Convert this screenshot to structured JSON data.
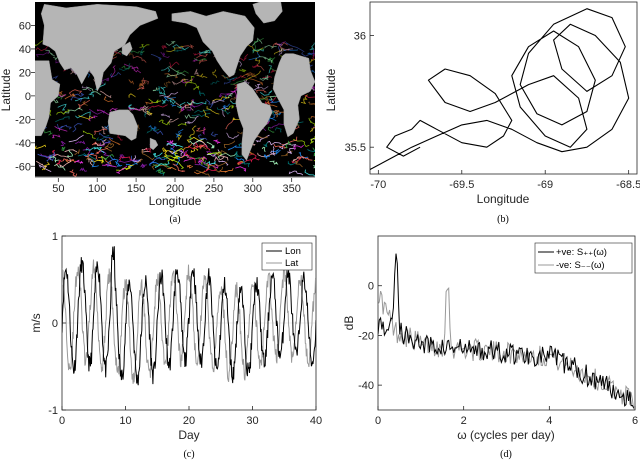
{
  "panels": {
    "a": {
      "caption": "(a)",
      "xlabel": "Longitude",
      "ylabel": "Latitude",
      "xticks": [
        "50",
        "100",
        "150",
        "200",
        "250",
        "300",
        "350"
      ],
      "yticks": [
        "60",
        "40",
        "20",
        "0",
        "-20",
        "-40",
        "-60"
      ]
    },
    "b": {
      "caption": "(b)",
      "xlabel": "Longitude",
      "ylabel": "Latitude",
      "xticks": [
        "-70",
        "-69.5",
        "-69",
        "-68.5"
      ],
      "yticks": [
        "36",
        "35.5"
      ]
    },
    "c": {
      "caption": "(c)",
      "xlabel": "Day",
      "ylabel": "m/s",
      "xticks": [
        "0",
        "10",
        "20",
        "30",
        "40"
      ],
      "yticks": [
        "1",
        "0",
        "-1"
      ],
      "legend": [
        "Lon",
        "Lat"
      ]
    },
    "d": {
      "caption": "(d)",
      "xlabel": "ω (cycles per day)",
      "ylabel": "dB",
      "xticks": [
        "0",
        "2",
        "4",
        "6"
      ],
      "yticks": [
        "0",
        "-20",
        "-40"
      ],
      "legend": [
        "+ve: S₊₊(ω)",
        "-ve: S₋₋(ω)"
      ]
    }
  },
  "chart_data": [
    {
      "panel": "a",
      "type": "scatter",
      "description_visible": "global drifter trajectories on world map",
      "xlim": [
        20,
        380
      ],
      "ylim": [
        -70,
        80
      ],
      "colors": {
        "ocean": "#000000",
        "land": "#b5b5b5"
      }
    },
    {
      "panel": "b",
      "type": "line",
      "xlim": [
        -70.05,
        -68.45
      ],
      "ylim": [
        35.38,
        36.15
      ],
      "series": [
        {
          "x": [
            -70.05,
            -69.9,
            -69.8,
            -69.65,
            -69.5,
            -69.35,
            -69.2,
            -69.05,
            -68.9,
            -68.75,
            -68.6,
            -68.5,
            -68.55,
            -68.7,
            -68.85,
            -68.95,
            -68.9,
            -68.75,
            -68.6,
            -68.52,
            -68.6,
            -68.75,
            -68.95,
            -69.1,
            -69.15,
            -69.05,
            -68.9,
            -68.75,
            -68.7,
            -68.8,
            -68.95,
            -69.1,
            -69.2,
            -69.15,
            -69.0,
            -68.85,
            -68.75,
            -68.8,
            -68.95,
            -69.1,
            -69.3,
            -69.45,
            -69.6,
            -69.7,
            -69.6,
            -69.45,
            -69.3,
            -69.2,
            -69.25,
            -69.35,
            -69.5,
            -69.65,
            -69.75,
            -69.8,
            -69.9,
            -69.95,
            -69.85,
            -69.75
          ],
          "y": [
            35.4,
            35.46,
            35.5,
            35.55,
            35.6,
            35.62,
            35.58,
            35.52,
            35.48,
            35.5,
            35.58,
            35.72,
            35.88,
            36.0,
            36.05,
            35.98,
            35.85,
            35.75,
            35.82,
            35.95,
            36.08,
            36.12,
            36.05,
            35.92,
            35.78,
            35.65,
            35.6,
            35.66,
            35.8,
            35.95,
            36.02,
            35.95,
            35.82,
            35.68,
            35.55,
            35.5,
            35.58,
            35.72,
            35.82,
            35.78,
            35.7,
            35.66,
            35.7,
            35.8,
            35.85,
            35.82,
            35.74,
            35.62,
            35.55,
            35.5,
            35.52,
            35.58,
            35.62,
            35.58,
            35.55,
            35.5,
            35.46,
            35.5
          ]
        }
      ]
    },
    {
      "panel": "c",
      "type": "line",
      "xlim": [
        0,
        40
      ],
      "ylim": [
        -1,
        1
      ],
      "series": [
        {
          "name": "Lon",
          "period_days": 2.5,
          "amplitude_start": 0.6,
          "amplitude_end": 0.45
        },
        {
          "name": "Lat",
          "period_days": 2.5,
          "amplitude_start": 0.55,
          "amplitude_end": 0.45
        }
      ]
    },
    {
      "panel": "d",
      "type": "line",
      "xlim": [
        0,
        6
      ],
      "ylim": [
        -50,
        20
      ],
      "series": [
        {
          "name": "+ve: S₊₊(ω)",
          "peak_x": 0.42,
          "peak_y": 15
        },
        {
          "name": "-ve: S₋₋(ω)",
          "peak_x": 1.62,
          "peak_y": 2
        }
      ]
    }
  ]
}
